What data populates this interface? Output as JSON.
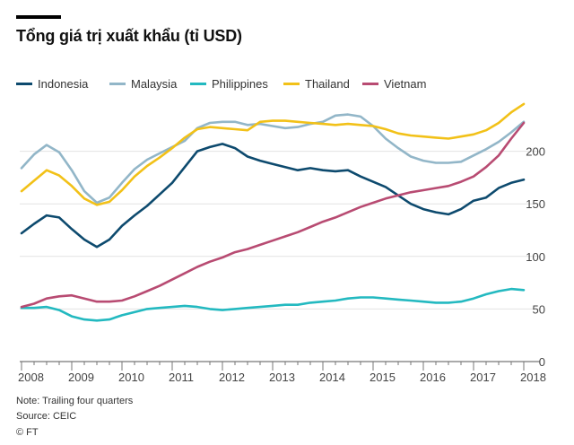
{
  "title": "Tổng giá trị xuất khẩu (tỉ USD)",
  "note": "Note: Trailing four quarters",
  "source": "Source: CEIC",
  "copyright": "© FT",
  "chart_data": {
    "type": "line",
    "title": "Tổng giá trị xuất khẩu (tỉ USD)",
    "xlabel": "",
    "ylabel": "",
    "x_tick_labels": [
      "2008",
      "2009",
      "2010",
      "2011",
      "2012",
      "2013",
      "2014",
      "2015",
      "2016",
      "2017",
      "2018"
    ],
    "y_ticks": [
      0,
      50,
      100,
      150,
      200
    ],
    "ylim": [
      0,
      250
    ],
    "grid": "horizontal",
    "legend_position": "top",
    "x": [
      "2008Q1",
      "2008Q2",
      "2008Q3",
      "2008Q4",
      "2009Q1",
      "2009Q2",
      "2009Q3",
      "2009Q4",
      "2010Q1",
      "2010Q2",
      "2010Q3",
      "2010Q4",
      "2011Q1",
      "2011Q2",
      "2011Q3",
      "2011Q4",
      "2012Q1",
      "2012Q2",
      "2012Q3",
      "2012Q4",
      "2013Q1",
      "2013Q2",
      "2013Q3",
      "2013Q4",
      "2014Q1",
      "2014Q2",
      "2014Q3",
      "2014Q4",
      "2015Q1",
      "2015Q2",
      "2015Q3",
      "2015Q4",
      "2016Q1",
      "2016Q2",
      "2016Q3",
      "2016Q4",
      "2017Q1",
      "2017Q2",
      "2017Q3",
      "2017Q4",
      "2018Q1"
    ],
    "series": [
      {
        "name": "Indonesia",
        "color": "#0d4a6e",
        "values": [
          122,
          131,
          139,
          137,
          126,
          116,
          109,
          116,
          129,
          139,
          148,
          159,
          170,
          185,
          200,
          204,
          207,
          203,
          195,
          191,
          188,
          185,
          182,
          184,
          182,
          181,
          182,
          176,
          171,
          166,
          158,
          150,
          145,
          142,
          140,
          145,
          153,
          156,
          165,
          170,
          173
        ]
      },
      {
        "name": "Malaysia",
        "color": "#92b6c8",
        "values": [
          184,
          197,
          206,
          199,
          182,
          162,
          151,
          156,
          170,
          183,
          192,
          198,
          204,
          210,
          222,
          227,
          228,
          228,
          225,
          226,
          224,
          222,
          223,
          226,
          228,
          234,
          235,
          233,
          224,
          212,
          203,
          195,
          191,
          189,
          189,
          190,
          196,
          202,
          209,
          218,
          228
        ]
      },
      {
        "name": "Philippines",
        "color": "#23b9c0",
        "values": [
          51,
          51,
          52,
          49,
          43,
          40,
          39,
          40,
          44,
          47,
          50,
          51,
          52,
          53,
          52,
          50,
          49,
          50,
          51,
          52,
          53,
          54,
          54,
          56,
          57,
          58,
          60,
          61,
          61,
          60,
          59,
          58,
          57,
          56,
          56,
          57,
          60,
          64,
          67,
          69,
          68
        ]
      },
      {
        "name": "Thailand",
        "color": "#f2c118",
        "values": [
          162,
          172,
          182,
          177,
          167,
          155,
          149,
          152,
          163,
          176,
          186,
          194,
          203,
          213,
          221,
          223,
          222,
          221,
          220,
          228,
          229,
          229,
          228,
          227,
          226,
          225,
          226,
          225,
          224,
          221,
          217,
          215,
          214,
          213,
          212,
          214,
          216,
          220,
          227,
          237,
          245
        ]
      },
      {
        "name": "Vietnam",
        "color": "#b84b72",
        "values": [
          52,
          55,
          60,
          62,
          63,
          60,
          57,
          57,
          58,
          62,
          67,
          72,
          78,
          84,
          90,
          95,
          99,
          104,
          107,
          111,
          115,
          119,
          123,
          128,
          133,
          137,
          142,
          147,
          151,
          155,
          158,
          161,
          163,
          165,
          167,
          171,
          176,
          185,
          196,
          212,
          227
        ]
      }
    ]
  }
}
